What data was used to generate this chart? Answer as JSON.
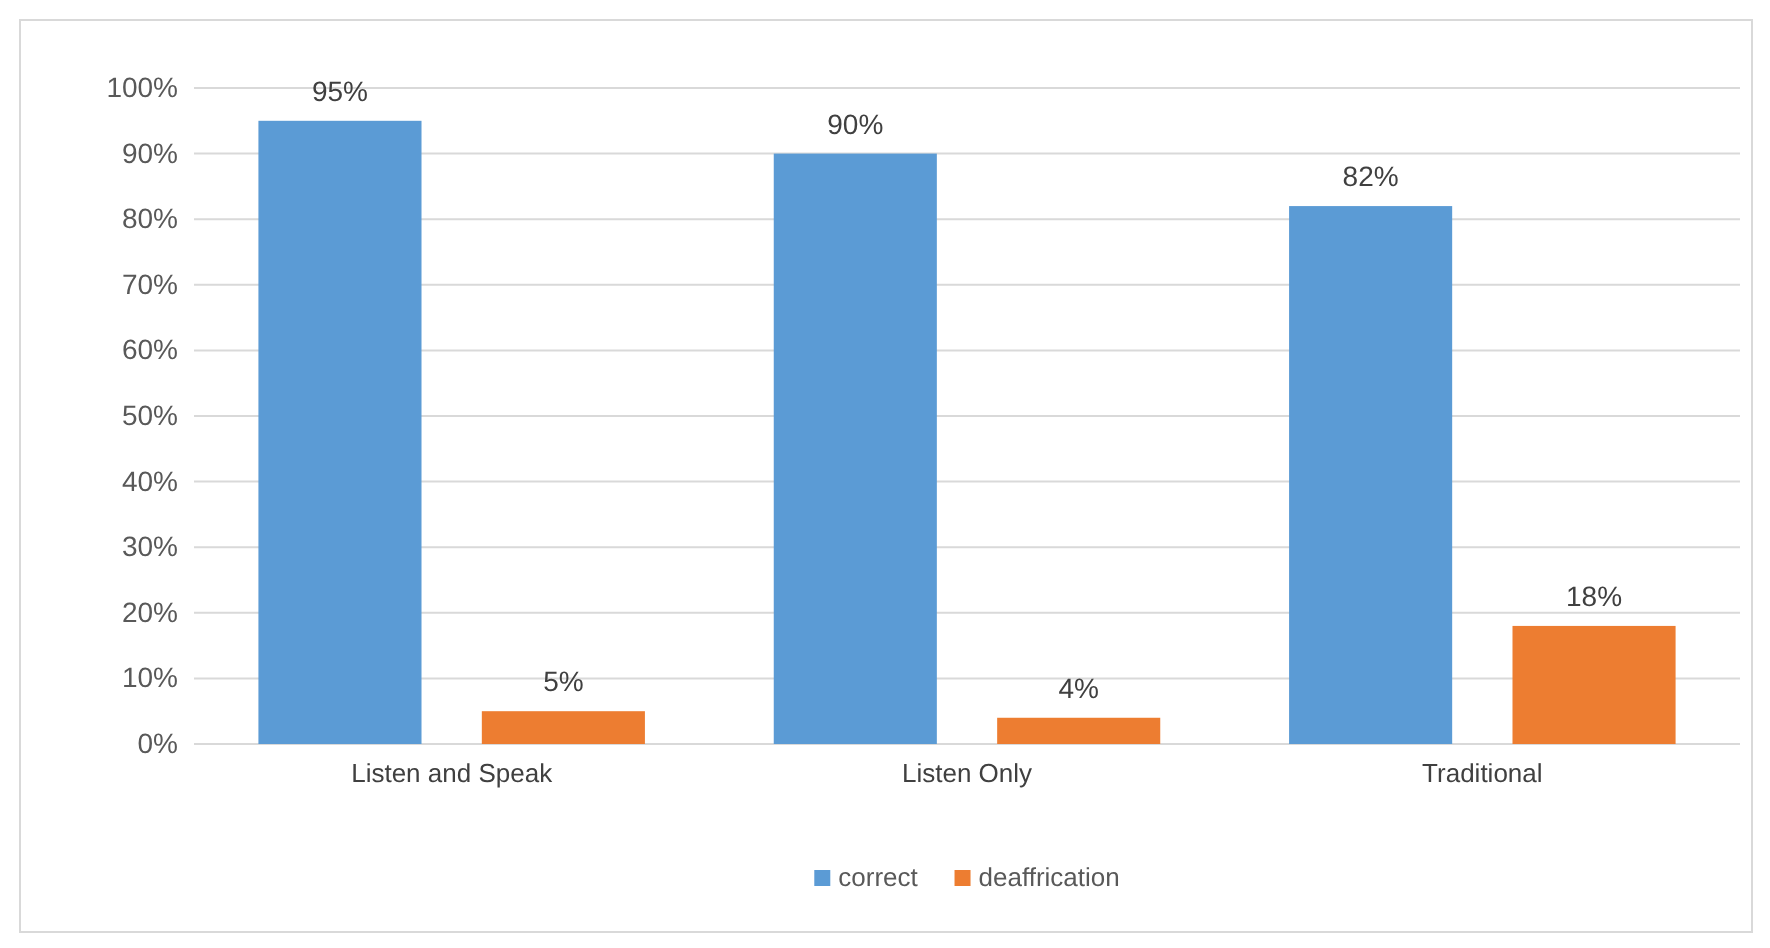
{
  "chart_data": {
    "type": "bar",
    "categories": [
      "Listen and Speak",
      "Listen Only",
      "Traditional"
    ],
    "series": [
      {
        "name": "correct",
        "color": "#5b9bd5",
        "values": [
          95,
          90,
          82
        ],
        "value_labels": [
          "95%",
          "90%",
          "82%"
        ]
      },
      {
        "name": "deaffrication",
        "color": "#ed7d31",
        "values": [
          5,
          4,
          18
        ],
        "value_labels": [
          "5%",
          "4%",
          "18%"
        ]
      }
    ],
    "ylim": [
      0,
      100
    ],
    "yticks": [
      {
        "value": 0,
        "label": "0%"
      },
      {
        "value": 10,
        "label": "10%"
      },
      {
        "value": 20,
        "label": "20%"
      },
      {
        "value": 30,
        "label": "30%"
      },
      {
        "value": 40,
        "label": "40%"
      },
      {
        "value": 50,
        "label": "50%"
      },
      {
        "value": 60,
        "label": "60%"
      },
      {
        "value": 70,
        "label": "70%"
      },
      {
        "value": 80,
        "label": "80%"
      },
      {
        "value": 90,
        "label": "90%"
      },
      {
        "value": 100,
        "label": "100%"
      }
    ],
    "grid": "y",
    "legend": "bottom"
  }
}
